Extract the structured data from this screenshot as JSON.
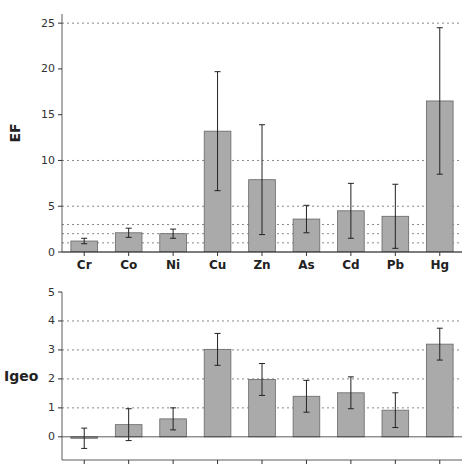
{
  "chart_data": [
    {
      "type": "bar",
      "y_label": "EF",
      "categories": [
        "Cr",
        "Co",
        "Ni",
        "Cu",
        "Zn",
        "As",
        "Cd",
        "Pb",
        "Hg"
      ],
      "values": [
        1.2,
        2.1,
        2.0,
        13.2,
        7.9,
        3.6,
        4.5,
        3.9,
        16.5
      ],
      "errors": [
        0.3,
        0.5,
        0.5,
        6.5,
        6.0,
        1.5,
        3.0,
        3.5,
        8.0
      ],
      "reference_lines": [
        1,
        2,
        3,
        5,
        10,
        25
      ],
      "color": "#aaaaaa",
      "ylim": [
        0,
        26
      ],
      "yticks": [
        0,
        5,
        10,
        15,
        20,
        25
      ],
      "grid": false
    },
    {
      "type": "bar",
      "y_label": "Igeo",
      "categories": [
        "Cr",
        "Co",
        "Ni",
        "Cu",
        "Zn",
        "As",
        "Cd",
        "Pb",
        "Hg"
      ],
      "values": [
        -0.05,
        0.42,
        0.62,
        3.02,
        1.98,
        1.4,
        1.52,
        0.92,
        3.2
      ],
      "errors": [
        0.35,
        0.55,
        0.38,
        0.55,
        0.55,
        0.55,
        0.55,
        0.6,
        0.55
      ],
      "reference_lines": [
        1,
        2,
        3,
        4
      ],
      "color": "#aaaaaa",
      "ylim": [
        -0.8,
        5.0
      ],
      "yticks": [
        0,
        1,
        2,
        3,
        4,
        5
      ],
      "grid": false,
      "tick_labels": "y"
    }
  ]
}
